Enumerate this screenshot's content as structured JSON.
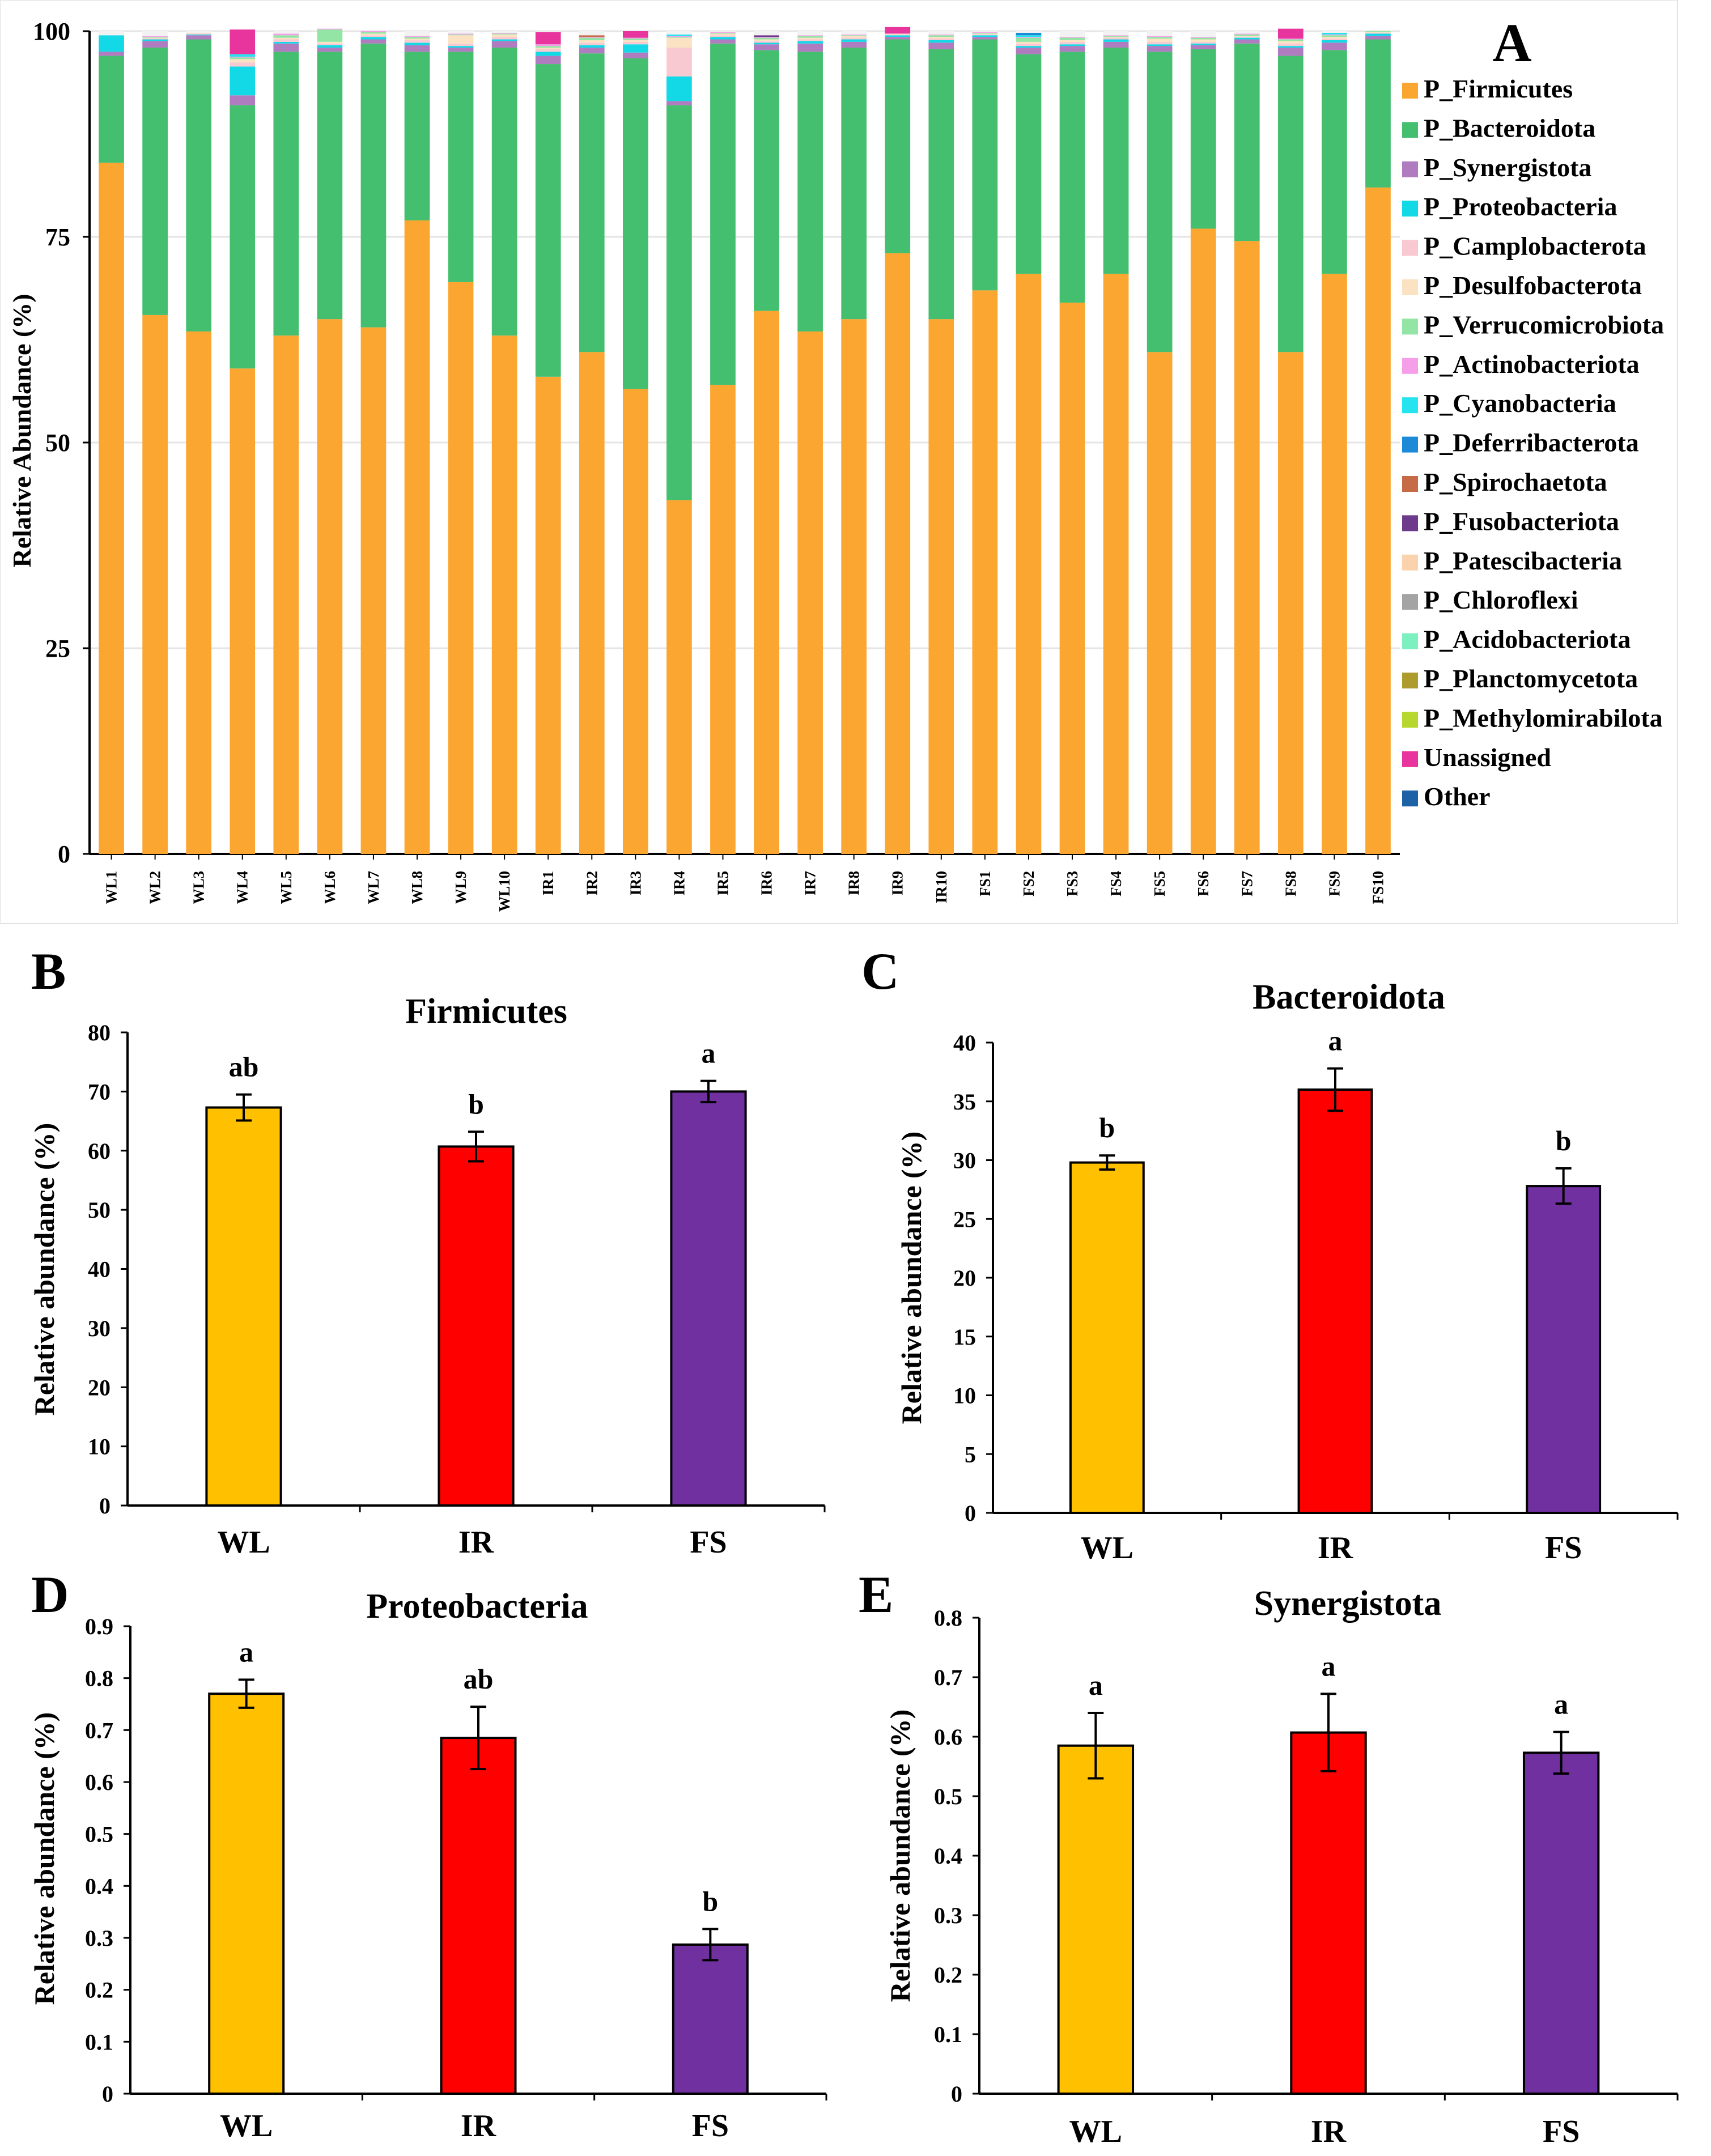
{
  "colors": {
    "Firmicutes": "#FBA630",
    "Bacteroidota": "#43BF6F",
    "Synergistota": "#B07CC0",
    "Proteobacteria": "#13D8E6",
    "Camplobacterota": "#F9C9D2",
    "Desulfobacterota": "#FBE2C3",
    "Verrucomicrobiota": "#93E5A5",
    "Actinobacteriota": "#F59FE9",
    "Cyanobacteria": "#25E3EF",
    "Deferribacterota": "#1C8AD7",
    "Spirochaetota": "#C66B45",
    "Fusobacteriota": "#6E3A8B",
    "Patescibacteria": "#FAD3AE",
    "Chloroflexi": "#A4A4A4",
    "Acidobacteriota": "#7CF0BF",
    "Planctomycetota": "#AE9B2D",
    "Methylomirabilota": "#B6D82E",
    "Unassigned": "#E8359E",
    "Other": "#1C62A5",
    "WL": "#FFC000",
    "IR": "#FF0000",
    "FS": "#7030A0",
    "gridline": "#E5E5E5"
  },
  "chart_data": [
    {
      "panel": "A",
      "type": "stacked-bar",
      "title": "",
      "xlabel": "",
      "ylabel": "Relative Abundance (%)",
      "ylim": [
        0,
        100
      ],
      "yticks": [
        0,
        25,
        50,
        75,
        100
      ],
      "grid": true,
      "legend_position": "right",
      "categories": [
        "WL1",
        "WL2",
        "WL3",
        "WL4",
        "WL5",
        "WL6",
        "WL7",
        "WL8",
        "WL9",
        "WL10",
        "IR1",
        "IR2",
        "IR3",
        "IR4",
        "IR5",
        "IR6",
        "IR7",
        "IR8",
        "IR9",
        "IR10",
        "FS1",
        "FS2",
        "FS3",
        "FS4",
        "FS5",
        "FS6",
        "FS7",
        "FS8",
        "FS9",
        "FS10"
      ],
      "series": [
        {
          "name": "P_Firmicutes",
          "key": "Firmicutes",
          "values": [
            84,
            65.5,
            63.5,
            59,
            63,
            65,
            64,
            77,
            69.5,
            63,
            58,
            61,
            56.5,
            43,
            57,
            66,
            63.5,
            65,
            73,
            65,
            68.5,
            70.5,
            67,
            70.5,
            61,
            76,
            74.5,
            61,
            70.5,
            81
          ]
        },
        {
          "name": "P_Bacteroidota",
          "key": "Bacteroidota",
          "values": [
            13,
            32.5,
            35.5,
            32,
            34.5,
            32.5,
            34.5,
            20.5,
            28,
            35,
            38,
            36.3,
            40.2,
            48,
            41.5,
            31.7,
            34,
            33,
            26,
            32.8,
            30.5,
            26.7,
            30.5,
            27.5,
            36.5,
            21.8,
            24,
            36,
            27.2,
            18
          ]
        },
        {
          "name": "P_Synergistota",
          "key": "Synergistota",
          "values": [
            0.5,
            0.8,
            0.5,
            1.2,
            1,
            0.5,
            0.5,
            0.8,
            0.5,
            0.8,
            1,
            0.7,
            0.7,
            0.5,
            0.5,
            0.7,
            1,
            0.7,
            0.3,
            0.8,
            0.3,
            0.8,
            0.7,
            0.7,
            0.7,
            0.5,
            0.5,
            1,
            0.9,
            0.4
          ]
        },
        {
          "name": "P_Proteobacteria",
          "key": "Proteobacteria",
          "values": [
            2,
            0.2,
            0.1,
            3.5,
            0.2,
            0.3,
            0.3,
            0.3,
            0.2,
            0.2,
            0.5,
            0.3,
            1,
            3,
            0.3,
            0.2,
            0.3,
            0.3,
            0.2,
            0.3,
            0.2,
            0.2,
            0.2,
            0.3,
            0.2,
            0.2,
            0.2,
            0.2,
            0.3,
            0.3
          ]
        },
        {
          "name": "P_Camplobacterota",
          "key": "Camplobacterota",
          "values": [
            0,
            0.1,
            0.1,
            0.5,
            0.3,
            0.2,
            0.2,
            0.3,
            0.3,
            0.3,
            0.3,
            0.3,
            0.3,
            3.5,
            0.2,
            0.2,
            0.2,
            0.2,
            0.1,
            0.2,
            0.1,
            0.3,
            0.3,
            0.2,
            0.3,
            0.2,
            0.1,
            0.3,
            0.2,
            0.1
          ]
        },
        {
          "name": "P_Desulfobacterota",
          "key": "Desulfobacterota",
          "values": [
            0,
            0.1,
            0.1,
            0.4,
            0.2,
            0.2,
            0.2,
            0.2,
            1,
            0.3,
            0.2,
            0.3,
            0.2,
            1.2,
            0.2,
            0.2,
            0.2,
            0.2,
            0.1,
            0.2,
            0.1,
            0.2,
            0.2,
            0.1,
            0.4,
            0.3,
            0.1,
            0.3,
            0.2,
            0.1
          ]
        },
        {
          "name": "P_Verrucomicrobiota",
          "key": "Verrucomicrobiota",
          "values": [
            0,
            0.1,
            0,
            0.2,
            0.3,
            1.5,
            0.2,
            0.2,
            0.1,
            0.1,
            0.2,
            0.3,
            0.2,
            0.1,
            0.1,
            0.2,
            0.2,
            0.1,
            0,
            0.2,
            0.1,
            0.5,
            0.3,
            0.1,
            0.2,
            0.2,
            0.2,
            0.2,
            0.2,
            0.1
          ]
        },
        {
          "name": "P_Actinobacteriota",
          "key": "Actinobacteriota",
          "values": [
            0,
            0.1,
            0,
            0.1,
            0.2,
            0.1,
            0.1,
            0.1,
            0.1,
            0.1,
            0.2,
            0.1,
            0.1,
            0.1,
            0.1,
            0.1,
            0.1,
            0.1,
            0,
            0.1,
            0.1,
            0.1,
            0.1,
            0.1,
            0.1,
            0.1,
            0.1,
            0.1,
            0.1,
            0
          ]
        },
        {
          "name": "P_Cyanobacteria",
          "key": "Cyanobacteria",
          "values": [
            0,
            0,
            0,
            0.3,
            0,
            0,
            0,
            0,
            0,
            0,
            0,
            0,
            0,
            0.2,
            0,
            0,
            0,
            0,
            0,
            0,
            0,
            0.2,
            0,
            0,
            0,
            0,
            0,
            0,
            0.2,
            0
          ]
        },
        {
          "name": "P_Deferribacterota",
          "key": "Deferribacterota",
          "values": [
            0,
            0,
            0,
            0,
            0,
            0,
            0,
            0,
            0,
            0,
            0,
            0,
            0,
            0,
            0,
            0,
            0,
            0,
            0,
            0,
            0,
            0.3,
            0,
            0,
            0,
            0,
            0,
            0,
            0,
            0
          ]
        },
        {
          "name": "P_Spirochaetota",
          "key": "Spirochaetota",
          "values": [
            0,
            0,
            0,
            0,
            0,
            0,
            0,
            0,
            0,
            0,
            0,
            0.2,
            0,
            0,
            0,
            0,
            0,
            0,
            0,
            0,
            0,
            0,
            0,
            0,
            0,
            0,
            0,
            0,
            0,
            0
          ]
        },
        {
          "name": "P_Fusobacteriota",
          "key": "Fusobacteriota",
          "values": [
            0,
            0,
            0,
            0,
            0,
            0,
            0,
            0,
            0,
            0,
            0,
            0,
            0,
            0,
            0,
            0.2,
            0,
            0,
            0,
            0,
            0,
            0,
            0,
            0,
            0,
            0,
            0,
            0,
            0,
            0
          ]
        },
        {
          "name": "P_Patescibacteria",
          "key": "Patescibacteria",
          "values": [
            0,
            0,
            0,
            0,
            0,
            0,
            0,
            0,
            0,
            0,
            0,
            0,
            0,
            0,
            0,
            0,
            0,
            0,
            0,
            0,
            0,
            0,
            0,
            0,
            0,
            0,
            0,
            0,
            0,
            0
          ]
        },
        {
          "name": "P_Chloroflexi",
          "key": "Chloroflexi",
          "values": [
            0,
            0,
            0,
            0,
            0,
            0,
            0,
            0,
            0,
            0,
            0,
            0,
            0,
            0,
            0,
            0,
            0,
            0,
            0,
            0,
            0,
            0,
            0,
            0,
            0,
            0,
            0,
            0,
            0,
            0
          ]
        },
        {
          "name": "P_Acidobacteriota",
          "key": "Acidobacteriota",
          "values": [
            0,
            0,
            0,
            0,
            0,
            0,
            0,
            0,
            0,
            0,
            0,
            0,
            0,
            0,
            0,
            0,
            0,
            0,
            0,
            0,
            0,
            0,
            0,
            0,
            0,
            0,
            0,
            0,
            0,
            0
          ]
        },
        {
          "name": "P_Planctomycetota",
          "key": "Planctomycetota",
          "values": [
            0,
            0,
            0,
            0,
            0,
            0,
            0,
            0,
            0,
            0,
            0,
            0,
            0,
            0,
            0,
            0,
            0,
            0,
            0,
            0,
            0,
            0,
            0,
            0,
            0,
            0,
            0,
            0,
            0,
            0
          ]
        },
        {
          "name": "P_Methylomirabilota",
          "key": "Methylomirabilota",
          "values": [
            0,
            0,
            0,
            0,
            0,
            0,
            0,
            0,
            0,
            0,
            0,
            0,
            0,
            0,
            0,
            0,
            0,
            0,
            0,
            0,
            0,
            0,
            0,
            0,
            0,
            0,
            0,
            0,
            0,
            0
          ]
        },
        {
          "name": "Unassigned",
          "key": "Unassigned",
          "values": [
            0,
            0,
            0,
            3,
            0,
            0,
            0,
            0,
            0,
            0,
            1.5,
            0,
            0.8,
            0,
            0,
            0,
            0,
            0,
            0.8,
            0,
            0,
            0,
            0,
            0,
            0,
            0,
            0,
            1.2,
            0,
            0
          ]
        },
        {
          "name": "Other",
          "key": "Other",
          "values": [
            0,
            0,
            0,
            0,
            0,
            0,
            0,
            0,
            0,
            0,
            0,
            0,
            0,
            0,
            0,
            0,
            0,
            0,
            0,
            0,
            0,
            0,
            0,
            0,
            0,
            0,
            0,
            0,
            0,
            0
          ]
        }
      ]
    },
    {
      "panel": "B",
      "type": "bar",
      "title": "Firmicutes",
      "xlabel": "",
      "ylabel": "Relative abundance (%)",
      "ylim": [
        0,
        80
      ],
      "yticks": [
        0,
        10,
        20,
        30,
        40,
        50,
        60,
        70,
        80
      ],
      "categories": [
        "WL",
        "IR",
        "FS"
      ],
      "values": [
        67.3,
        60.7,
        70
      ],
      "errors": [
        2.2,
        2.5,
        1.8
      ],
      "letters": [
        "ab",
        "b",
        "a"
      ]
    },
    {
      "panel": "C",
      "type": "bar",
      "title": "Bacteroidota",
      "xlabel": "",
      "ylabel": "Relative abundance (%)",
      "ylim": [
        0,
        40
      ],
      "yticks": [
        0,
        5,
        10,
        15,
        20,
        25,
        30,
        35,
        40
      ],
      "categories": [
        "WL",
        "IR",
        "FS"
      ],
      "values": [
        29.8,
        36,
        27.8
      ],
      "errors": [
        0.6,
        1.8,
        1.5
      ],
      "letters": [
        "b",
        "a",
        "b"
      ]
    },
    {
      "panel": "D",
      "type": "bar",
      "title": "Proteobacteria",
      "xlabel": "",
      "ylabel": "Relative abundance (%)",
      "ylim": [
        0,
        0.9
      ],
      "yticks": [
        0,
        0.1,
        0.2,
        0.3,
        0.4,
        0.5,
        0.6,
        0.7,
        0.8,
        0.9
      ],
      "categories": [
        "WL",
        "IR",
        "FS"
      ],
      "values": [
        0.77,
        0.685,
        0.287
      ],
      "errors": [
        0.027,
        0.06,
        0.03
      ],
      "letters": [
        "a",
        "ab",
        "b"
      ]
    },
    {
      "panel": "E",
      "type": "bar",
      "title": "Synergistota",
      "xlabel": "",
      "ylabel": "Relative abundance (%)",
      "ylim": [
        0,
        0.8
      ],
      "yticks": [
        0,
        0.1,
        0.2,
        0.3,
        0.4,
        0.5,
        0.6,
        0.7,
        0.8
      ],
      "categories": [
        "WL",
        "IR",
        "FS"
      ],
      "values": [
        0.585,
        0.607,
        0.573
      ],
      "errors": [
        0.055,
        0.065,
        0.035
      ],
      "letters": [
        "a",
        "a",
        "a"
      ]
    }
  ]
}
